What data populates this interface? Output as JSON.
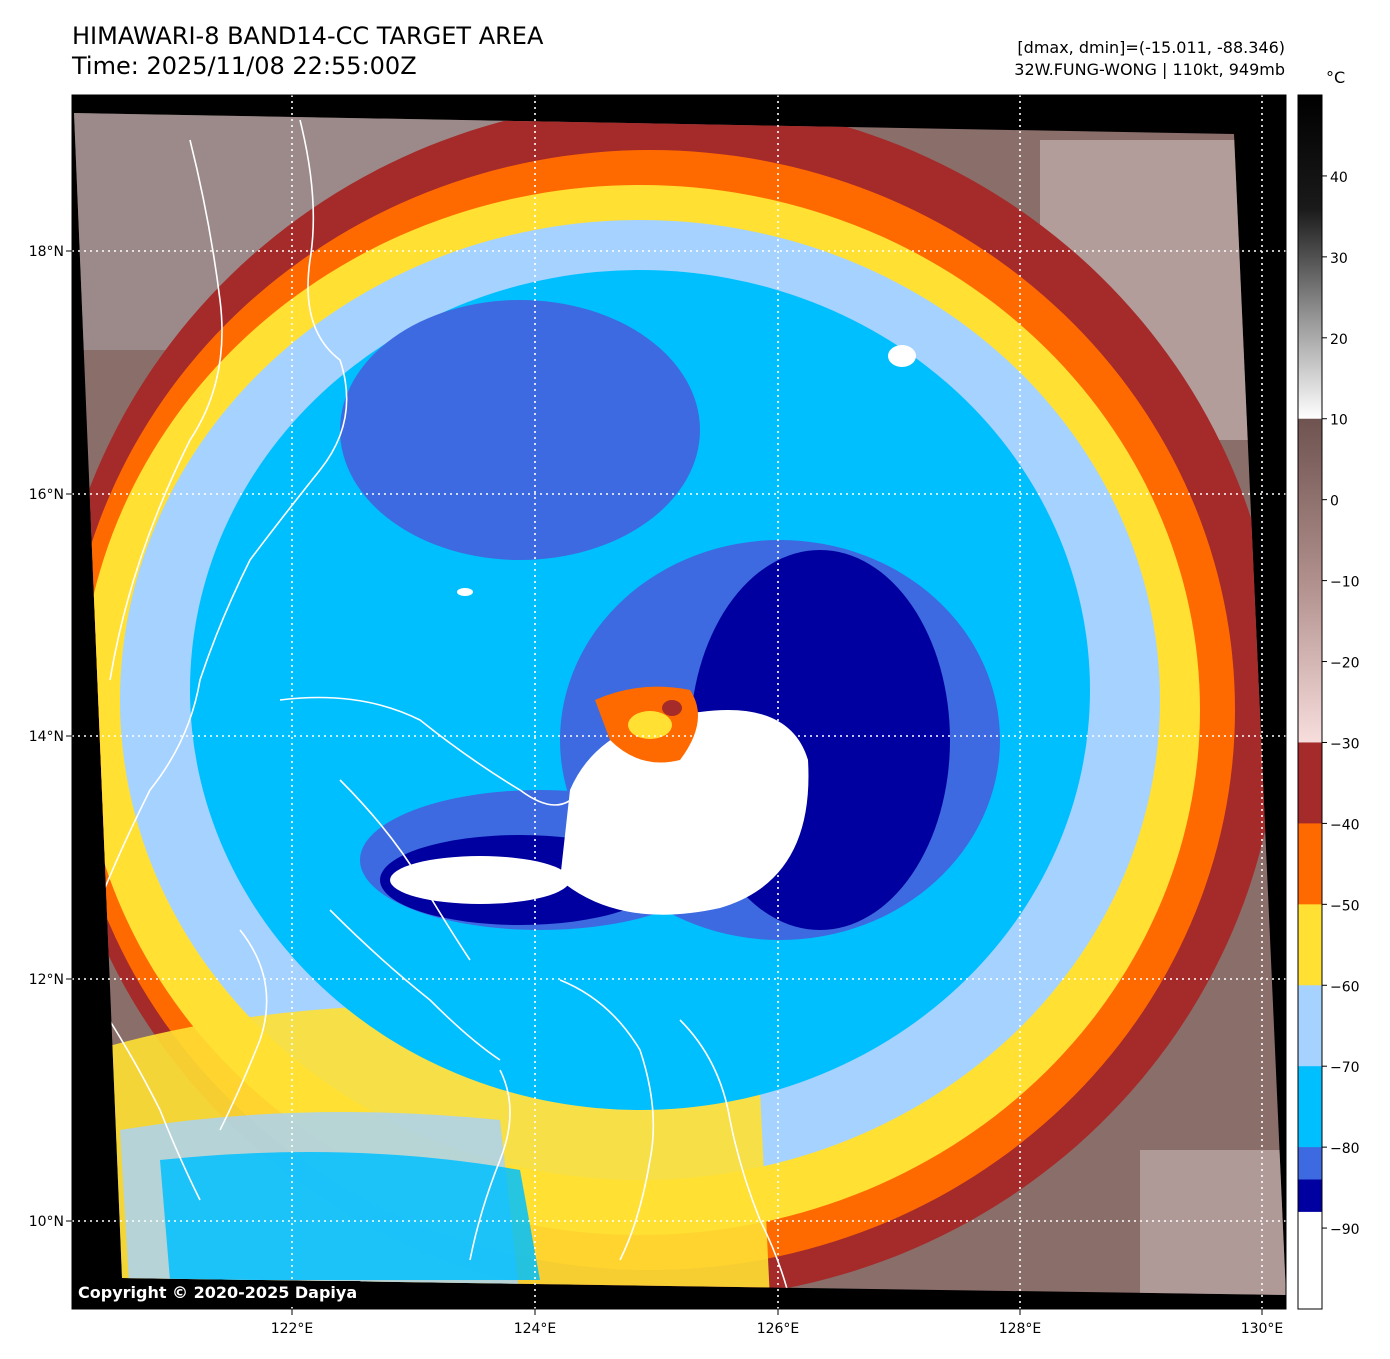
{
  "header": {
    "title_line1": "HIMAWARI-8 BAND14-CC TARGET AREA",
    "title_line2": "Time: 2025/11/08 22:55:00Z",
    "stats_line": "[dmax, dmin]=(-15.011, -88.346)",
    "storm_line": "32W.FUNG-WONG | 110kt, 949mb"
  },
  "map": {
    "lon_ticks": [
      "122°E",
      "124°E",
      "126°E",
      "128°E",
      "130°E"
    ],
    "lat_ticks": [
      "18°N",
      "16°N",
      "14°N",
      "12°N",
      "10°N"
    ],
    "lon_range": [
      120.2,
      130.2
    ],
    "lat_range": [
      9.25,
      19.25
    ],
    "gridlines": "dotted-white",
    "coastline_color": "#ffffff"
  },
  "colorbar": {
    "unit": "°C",
    "tick_labels": [
      "40",
      "30",
      "20",
      "10",
      "0",
      "−10",
      "−20",
      "−30",
      "−40",
      "−50",
      "−60",
      "−70",
      "−80",
      "−90"
    ],
    "tick_values": [
      40,
      30,
      20,
      10,
      0,
      -10,
      -20,
      -30,
      -40,
      -50,
      -60,
      -70,
      -80,
      -90
    ],
    "range": [
      -100,
      50
    ],
    "segments": [
      {
        "from": 50,
        "to": 10,
        "style": "gray-gradient"
      },
      {
        "from": 10,
        "to": -30,
        "style": "brown-pink-gradient"
      },
      {
        "from": -30,
        "to": -40,
        "color": "#a52a2a"
      },
      {
        "from": -40,
        "to": -50,
        "color": "#ff6a00"
      },
      {
        "from": -50,
        "to": -60,
        "color": "#ffe033"
      },
      {
        "from": -60,
        "to": -70,
        "color": "#a6d2ff"
      },
      {
        "from": -70,
        "to": -80,
        "color": "#00bfff"
      },
      {
        "from": -80,
        "to": -84,
        "color": "#3d6ae0"
      },
      {
        "from": -84,
        "to": -88,
        "color": "#0000a0"
      },
      {
        "from": -88,
        "to": -100,
        "color": "#ffffff"
      }
    ]
  },
  "imagery_colors": {
    "warm_land": "#8a6e6a",
    "red": "#a52a2a",
    "orange": "#ff6a00",
    "yellow": "#ffe033",
    "light_blue": "#a6d2ff",
    "cyan": "#00bfff",
    "royal_blue": "#3d6ae0",
    "navy": "#0000a0",
    "white": "#ffffff"
  },
  "footer": {
    "copyright": "Copyright © 2020-2025 Dapiya"
  }
}
